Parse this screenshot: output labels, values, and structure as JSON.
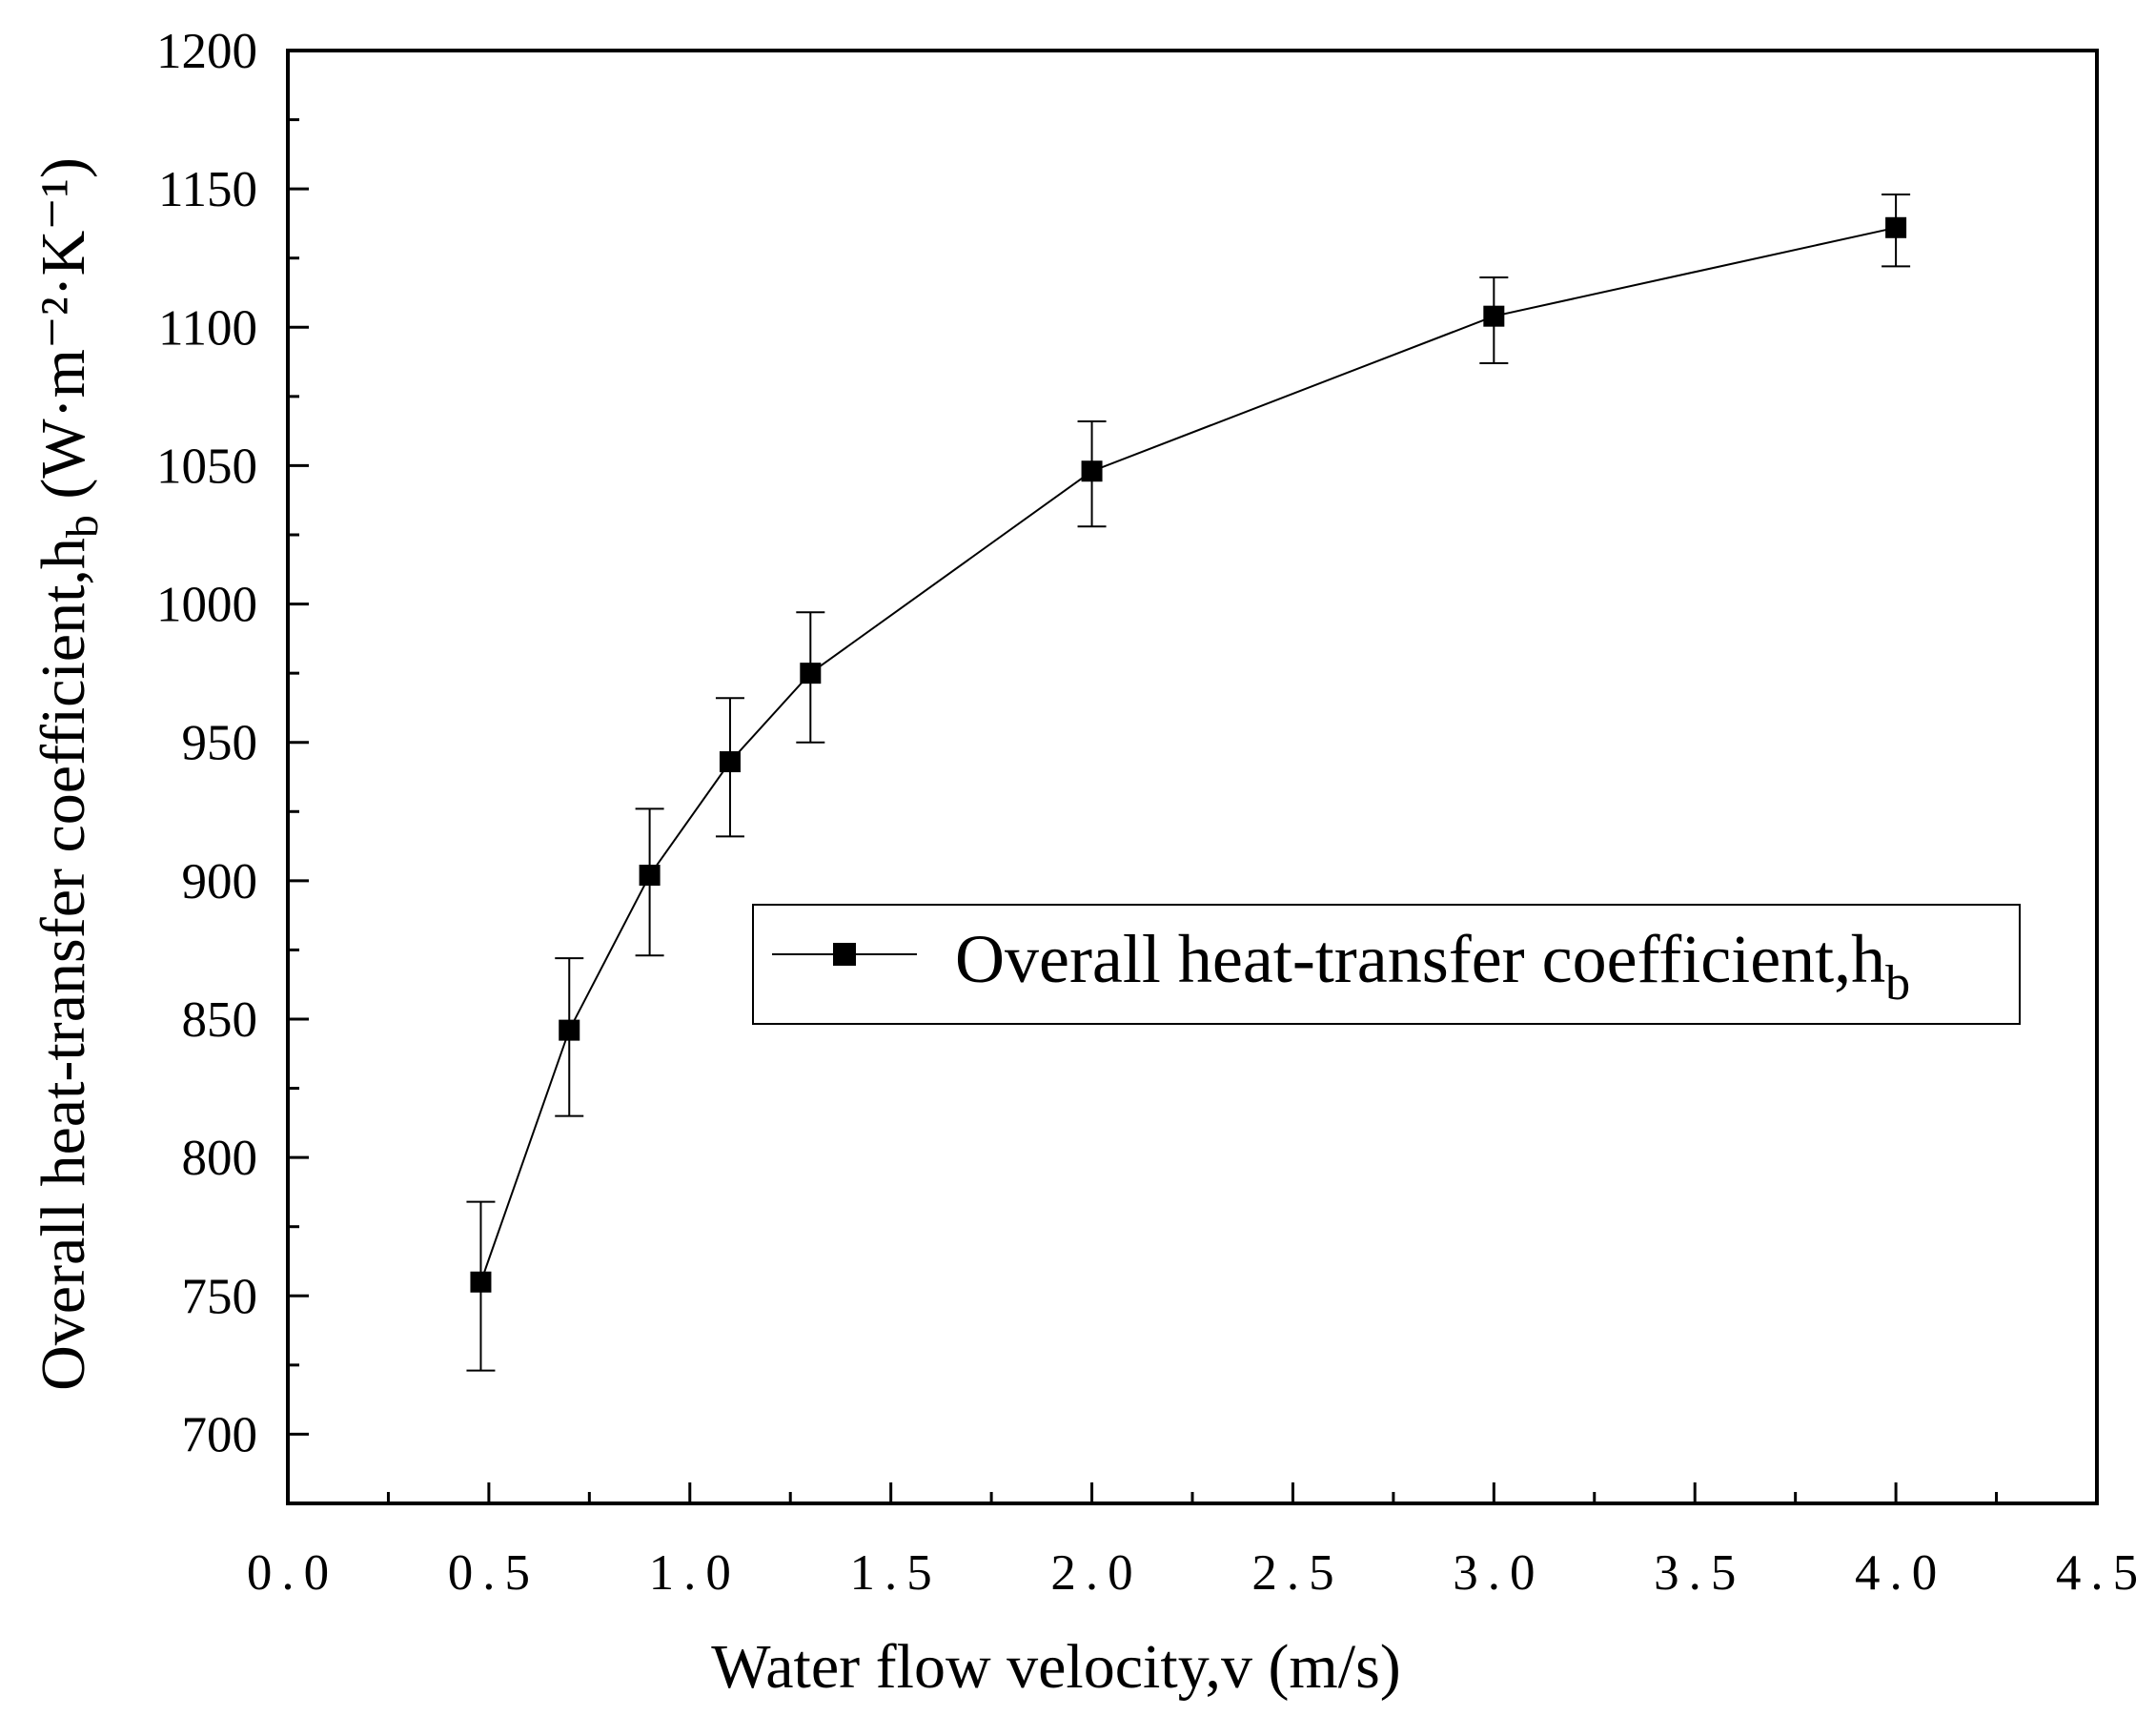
{
  "chart_data": {
    "type": "line",
    "title": "",
    "xlabel": "Water flow velocity,v (m/s)",
    "ylabel": "Overall heat-transfer coefficient,h",
    "ylabel_sub": "b",
    "ylabel_unit": "(W·m⁻²·K⁻¹)",
    "xlim": [
      0.0,
      4.5
    ],
    "ylim": [
      675,
      1200
    ],
    "x_ticks": [
      0.0,
      0.5,
      1.0,
      1.5,
      2.0,
      2.5,
      3.0,
      3.5,
      4.0,
      4.5
    ],
    "x_tick_labels": [
      "0.0",
      "0.5",
      "1.0",
      "1.5",
      "2.0",
      "2.5",
      "3.0",
      "3.5",
      "4.0",
      "4.5"
    ],
    "y_ticks": [
      700,
      750,
      800,
      850,
      900,
      950,
      1000,
      1050,
      1100,
      1150,
      1200
    ],
    "y_tick_labels": [
      "700",
      "750",
      "800",
      "850",
      "900",
      "950",
      "1000",
      "1050",
      "1100",
      "1150",
      "1200"
    ],
    "grid": false,
    "legend_position": "center-right",
    "legend_label": "Overall heat-transfer coefficient,h",
    "legend_label_sub": "b",
    "series": [
      {
        "name": "Overall heat-transfer coefficient,hb",
        "x": [
          0.48,
          0.7,
          0.9,
          1.1,
          1.3,
          2.0,
          3.0,
          4.0
        ],
        "y": [
          755,
          846,
          902,
          943,
          975,
          1048,
          1104,
          1136
        ],
        "err_low": [
          723,
          815,
          873,
          916,
          950,
          1028,
          1087,
          1122
        ],
        "err_high": [
          784,
          872,
          926,
          966,
          997,
          1066,
          1118,
          1148
        ]
      }
    ]
  }
}
